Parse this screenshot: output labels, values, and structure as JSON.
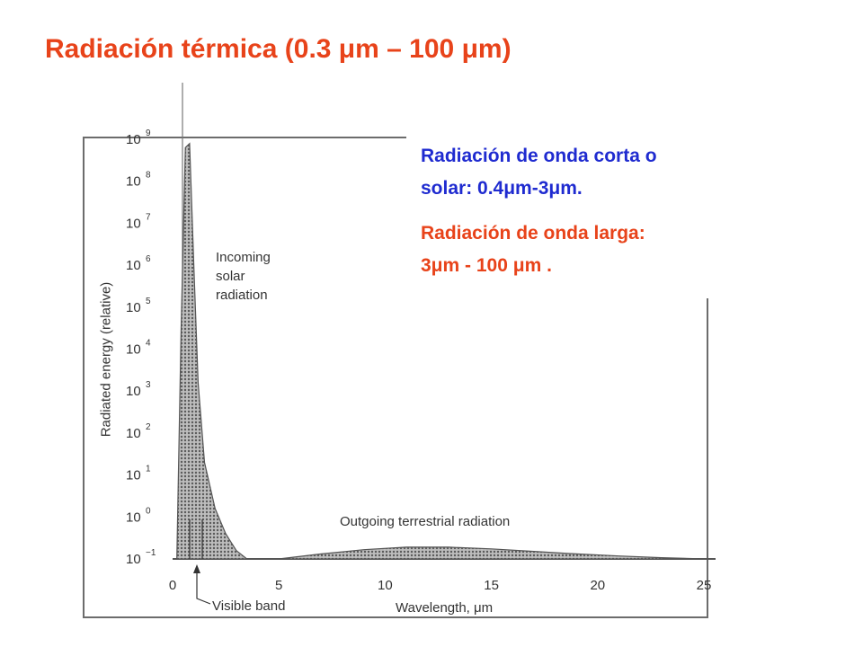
{
  "slide": {
    "title": "Radiación térmica (0.3 μm – 100 μm)"
  },
  "info": {
    "shortwave_line1": "Radiación de onda corta o",
    "shortwave_line2": "solar: 0.4μm-3μm.",
    "longwave_line1": "Radiación de onda larga:",
    "longwave_line2": "3μm - 100 μm ."
  },
  "colors": {
    "title": "#e8431a",
    "shortwave_text": "#1f2bd0",
    "longwave_text": "#e8431a",
    "curve_fill": "#7a7a7a"
  },
  "chart_data": {
    "type": "area",
    "xlabel": "Wavelength, μm",
    "ylabel": "Radiated energy (relative)",
    "y_scale": "log",
    "xlim": [
      0,
      25
    ],
    "ylim": [
      -1,
      9
    ],
    "x_ticks": [
      0,
      5,
      10,
      15,
      20,
      25
    ],
    "y_ticks": [
      {
        "label": "10",
        "exp": "9"
      },
      {
        "label": "10",
        "exp": "8"
      },
      {
        "label": "10",
        "exp": "7"
      },
      {
        "label": "10",
        "exp": "6"
      },
      {
        "label": "10",
        "exp": "5"
      },
      {
        "label": "10",
        "exp": "4"
      },
      {
        "label": "10",
        "exp": "3"
      },
      {
        "label": "10",
        "exp": "2"
      },
      {
        "label": "10",
        "exp": "1"
      },
      {
        "label": "10",
        "exp": "0"
      },
      {
        "label": "10",
        "exp": "−1"
      }
    ],
    "series": [
      {
        "name": "Incoming solar radiation",
        "x": [
          0.2,
          0.4,
          0.6,
          0.8,
          1.0,
          1.2,
          1.5,
          2.0,
          2.5,
          3.0,
          3.5
        ],
        "log10_y": [
          -1,
          4.5,
          8.8,
          8.9,
          6.0,
          3.2,
          1.3,
          0.2,
          -0.4,
          -0.8,
          -1
        ]
      },
      {
        "name": "Outgoing terrestrial radiation",
        "x": [
          5,
          7,
          9,
          11,
          13,
          15,
          17,
          19,
          21,
          23,
          25
        ],
        "log10_y": [
          -1,
          -0.88,
          -0.78,
          -0.72,
          -0.72,
          -0.76,
          -0.82,
          -0.88,
          -0.93,
          -0.97,
          -1
        ]
      }
    ],
    "annotations": {
      "incoming": [
        "Incoming",
        "solar",
        "radiation"
      ],
      "outgoing": "Outgoing terrestrial radiation",
      "visible_band": "Visible band"
    }
  }
}
